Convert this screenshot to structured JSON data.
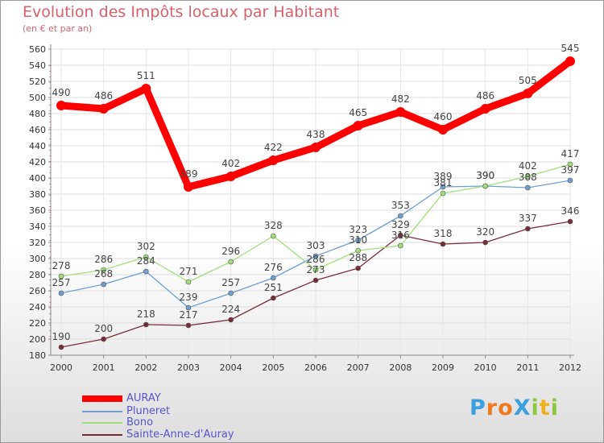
{
  "chart_data": {
    "type": "line",
    "title": "Evolution des Impôts locaux par Habitant",
    "subtitle": "(en € et par an)",
    "x": [
      "2000",
      "2001",
      "2002",
      "2003",
      "2004",
      "2005",
      "2006",
      "2007",
      "2008",
      "2009",
      "2010",
      "2011",
      "2012"
    ],
    "ylim": [
      180,
      560
    ],
    "yticks": [
      180,
      200,
      220,
      240,
      260,
      280,
      300,
      320,
      340,
      360,
      380,
      400,
      420,
      440,
      460,
      480,
      500,
      520,
      540,
      560
    ],
    "series": [
      {
        "name": "AURAY",
        "color": "#ff0000",
        "values": [
          490,
          486,
          511,
          389,
          402,
          422,
          438,
          465,
          482,
          460,
          486,
          505,
          545
        ]
      },
      {
        "name": "Pluneret",
        "color": "#6f9fd0",
        "values": [
          257,
          268,
          284,
          239,
          257,
          276,
          303,
          323,
          353,
          389,
          390,
          388,
          397
        ]
      },
      {
        "name": "Bono",
        "color": "#9ee07a",
        "values": [
          278,
          286,
          302,
          271,
          296,
          328,
          286,
          310,
          316,
          381,
          390,
          402,
          417
        ]
      },
      {
        "name": "Sainte-Anne-d'Auray",
        "color": "#7a2c36",
        "values": [
          190,
          200,
          218,
          217,
          224,
          251,
          273,
          288,
          329,
          318,
          320,
          337,
          346
        ]
      }
    ]
  },
  "logo": {
    "text": "ProXiti",
    "letters": [
      {
        "ch": "P",
        "color": "#3aa0e0"
      },
      {
        "ch": "r",
        "color": "#f07a20"
      },
      {
        "ch": "o",
        "color": "#f07a20"
      },
      {
        "ch": "X",
        "color": "#3aa0e0"
      },
      {
        "ch": "i",
        "color": "#8cc83c"
      },
      {
        "ch": "t",
        "color": "#f0b020"
      },
      {
        "ch": "i",
        "color": "#8cc83c"
      }
    ]
  }
}
